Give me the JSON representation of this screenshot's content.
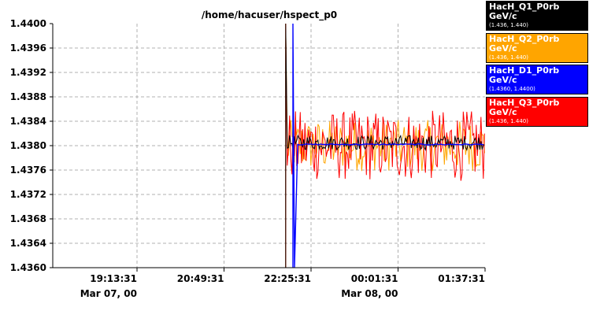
{
  "chart_data": {
    "type": "line",
    "title": "/home/hacuser/hspect_p0",
    "xlabel": "",
    "ylabel": "",
    "ylim": [
      1.436,
      1.44
    ],
    "yticks": [
      "1.4360",
      "1.4364",
      "1.4368",
      "1.4372",
      "1.4376",
      "1.4380",
      "1.4384",
      "1.4388",
      "1.4392",
      "1.4396",
      "1.4400"
    ],
    "xticks": [
      {
        "time": "19:13:31",
        "date": "Mar 07, 00"
      },
      {
        "time": "20:49:31",
        "date": ""
      },
      {
        "time": "22:25:31",
        "date": ""
      },
      {
        "time": "00:01:31",
        "date": "Mar 08, 00"
      },
      {
        "time": "01:37:31",
        "date": ""
      }
    ],
    "grid": true,
    "legend_position": "right",
    "series": [
      {
        "name": "HacH_Q1_P0rb",
        "unit": "GeV/c",
        "range": "(1.436, 1.440)",
        "color": "#000000",
        "text_color": "#ffffff",
        "start": "21:57:31",
        "level": 1.43805,
        "spread": 0.00012
      },
      {
        "name": "HacH_Q2_P0rb",
        "unit": "GeV/c",
        "range": "(1.436, 1.440)",
        "color": "#ffa500",
        "text_color": "#ffffff",
        "start": "21:57:31",
        "level": 1.438,
        "spread": 0.00042
      },
      {
        "name": "HacH_D1_P0rb",
        "unit": "GeV/c",
        "range": "(1.4360, 1.4400)",
        "color": "#0000ff",
        "text_color": "#ffffff",
        "start": "22:05:31",
        "level": 1.43802,
        "spread": 1e-05
      },
      {
        "name": "HacH_Q3_P0rb",
        "unit": "GeV/c",
        "range": "(1.436, 1.440)",
        "color": "#ff0000",
        "text_color": "#ffffff",
        "start": "21:57:31",
        "level": 1.438,
        "spread": 0.00058
      }
    ]
  }
}
